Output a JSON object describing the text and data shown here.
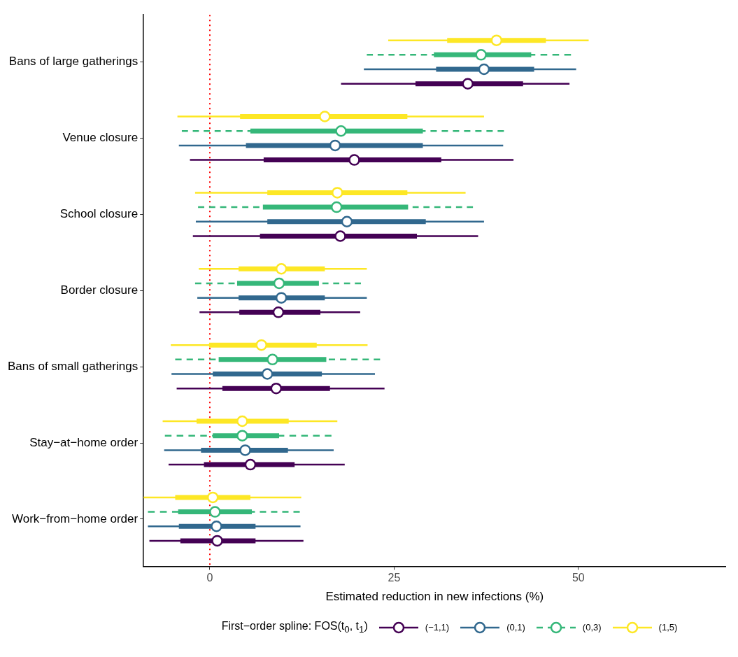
{
  "chart_data": {
    "type": "scatter",
    "orientation": "horizontal",
    "xlabel": "Estimated reduction in new infections (%)",
    "legend_title": "First−order spline: FOS(t$_{0}$, t$_{1}$)",
    "legend": "bottom",
    "grid": false,
    "marker": "circle",
    "xlim": [
      -9,
      70
    ],
    "xticks": [
      0,
      25,
      50
    ],
    "categories": [
      "Bans of large gatherings",
      "Venue closure",
      "School closure",
      "Border closure",
      "Bans of small gatherings",
      "Stay−at−home order",
      "Work−from−home order"
    ],
    "ref_lines": [
      {
        "axis": "x",
        "value": 0,
        "color": "#ff0000",
        "line_style": "dotted"
      }
    ],
    "series": [
      {
        "type": "scatter",
        "name": "(−1,1)",
        "color": "#440154",
        "line_style": "solid",
        "values": [
          35.0,
          19.6,
          17.7,
          9.3,
          9.0,
          5.5,
          1.0
        ],
        "errors": [
          [
            17.8,
            48.8
          ],
          [
            -2.7,
            41.2
          ],
          [
            -2.3,
            36.4
          ],
          [
            -1.4,
            20.4
          ],
          [
            -4.5,
            23.7
          ],
          [
            -5.6,
            18.3
          ],
          [
            -8.2,
            12.7
          ]
        ]
      },
      {
        "type": "scatter",
        "name": "(0,1)",
        "color": "#31688e",
        "line_style": "solid",
        "values": [
          37.2,
          17.0,
          18.6,
          9.7,
          7.8,
          4.8,
          0.9
        ],
        "errors": [
          [
            20.9,
            49.7
          ],
          [
            -4.2,
            39.8
          ],
          [
            -1.9,
            37.2
          ],
          [
            -1.7,
            21.3
          ],
          [
            -5.2,
            22.4
          ],
          [
            -6.2,
            16.8
          ],
          [
            -8.4,
            12.3
          ]
        ]
      },
      {
        "type": "scatter",
        "name": "(0,3)",
        "color": "#35b779",
        "line_style": "dashed",
        "values": [
          36.8,
          17.8,
          17.2,
          9.4,
          8.5,
          4.4,
          0.7
        ],
        "errors": [
          [
            21.3,
            49.0
          ],
          [
            -3.8,
            39.9
          ],
          [
            -1.6,
            35.7
          ],
          [
            -2.0,
            20.5
          ],
          [
            -4.7,
            23.1
          ],
          [
            -6.1,
            16.5
          ],
          [
            -8.4,
            12.2
          ]
        ]
      },
      {
        "type": "scatter",
        "name": "(1,5)",
        "color": "#fde725",
        "line_style": "solid",
        "values": [
          38.9,
          15.6,
          17.3,
          9.7,
          7.0,
          4.4,
          0.4
        ],
        "errors": [
          [
            24.2,
            51.4
          ],
          [
            -4.4,
            37.2
          ],
          [
            -2.0,
            34.7
          ],
          [
            -1.5,
            21.3
          ],
          [
            -5.3,
            21.4
          ],
          [
            -6.4,
            17.3
          ],
          [
            -9,
            12.4
          ]
        ]
      },
      {
        "type": "bar",
        "color": "#440154",
        "line_style": "solid",
        "base": [
          27.9,
          7.3,
          6.8,
          4.0,
          1.7,
          -0.8,
          -4.0
        ],
        "values": [
          14.6,
          24.1,
          21.3,
          11.0,
          14.6,
          12.3,
          10.2
        ]
      },
      {
        "type": "bar",
        "color": "#31688e",
        "line_style": "solid",
        "base": [
          30.7,
          4.9,
          7.8,
          3.9,
          0.4,
          -1.2,
          -4.2
        ],
        "values": [
          13.3,
          24.0,
          21.5,
          11.7,
          14.8,
          11.8,
          10.4
        ]
      },
      {
        "type": "bar",
        "color": "#35b779",
        "line_style": "solid",
        "base": [
          30.4,
          5.5,
          7.2,
          3.7,
          1.2,
          0.4,
          -4.3
        ],
        "values": [
          13.2,
          23.4,
          19.7,
          11.1,
          14.6,
          9.0,
          10.0
        ]
      },
      {
        "type": "bar",
        "color": "#fde725",
        "line_style": "solid",
        "base": [
          32.2,
          4.1,
          7.8,
          3.9,
          -0.1,
          -1.8,
          -4.7
        ],
        "values": [
          13.4,
          22.7,
          19.0,
          11.7,
          14.6,
          12.5,
          10.2
        ]
      }
    ]
  }
}
